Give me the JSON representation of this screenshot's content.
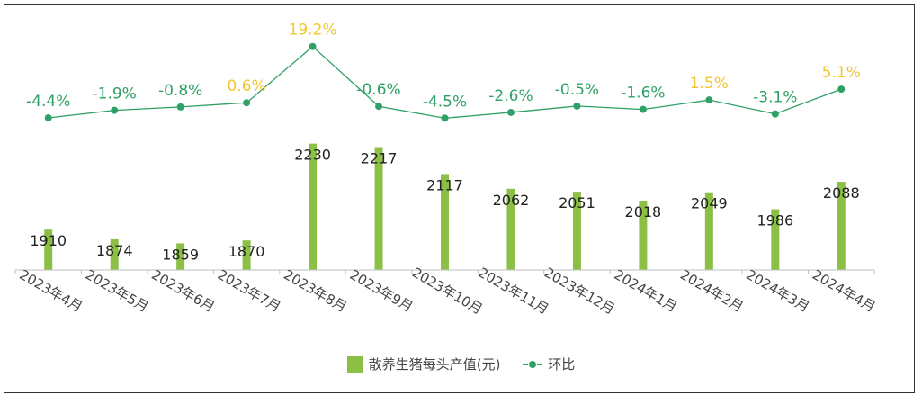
{
  "chart_data": {
    "type": "bar",
    "categories": [
      "2023年4月",
      "2023年5月",
      "2023年6月",
      "2023年7月",
      "2023年8月",
      "2023年9月",
      "2023年10月",
      "2023年11月",
      "2023年12月",
      "2024年1月",
      "2024年2月",
      "2024年3月",
      "2024年4月"
    ],
    "series": [
      {
        "name": "散养生猪每头产值(元)",
        "type": "bar",
        "color": "#8cbf45",
        "values": [
          1910,
          1874,
          1859,
          1870,
          2230,
          2217,
          2117,
          2062,
          2051,
          2018,
          2049,
          1986,
          2088
        ],
        "labels": [
          "1910",
          "1874",
          "1859",
          "1870",
          "2230",
          "2217",
          "2117",
          "2062",
          "2051",
          "2018",
          "2049",
          "1986",
          "2088"
        ]
      },
      {
        "name": "环比",
        "type": "line",
        "color": "#2fa066",
        "values": [
          -4.4,
          -1.9,
          -0.8,
          0.6,
          19.2,
          -0.6,
          -4.5,
          -2.6,
          -0.5,
          -1.6,
          1.5,
          -3.1,
          5.1
        ],
        "labels": [
          "-4.4%",
          "-1.9%",
          "-0.8%",
          "0.6%",
          "19.2%",
          "-0.6%",
          "-4.5%",
          "-2.6%",
          "-0.5%",
          "-1.6%",
          "1.5%",
          "-3.1%",
          "5.1%"
        ]
      }
    ],
    "positive_label_color": "#f2c531",
    "negative_label_color": "#2fa066",
    "legend_position": "bottom",
    "grid": false
  }
}
